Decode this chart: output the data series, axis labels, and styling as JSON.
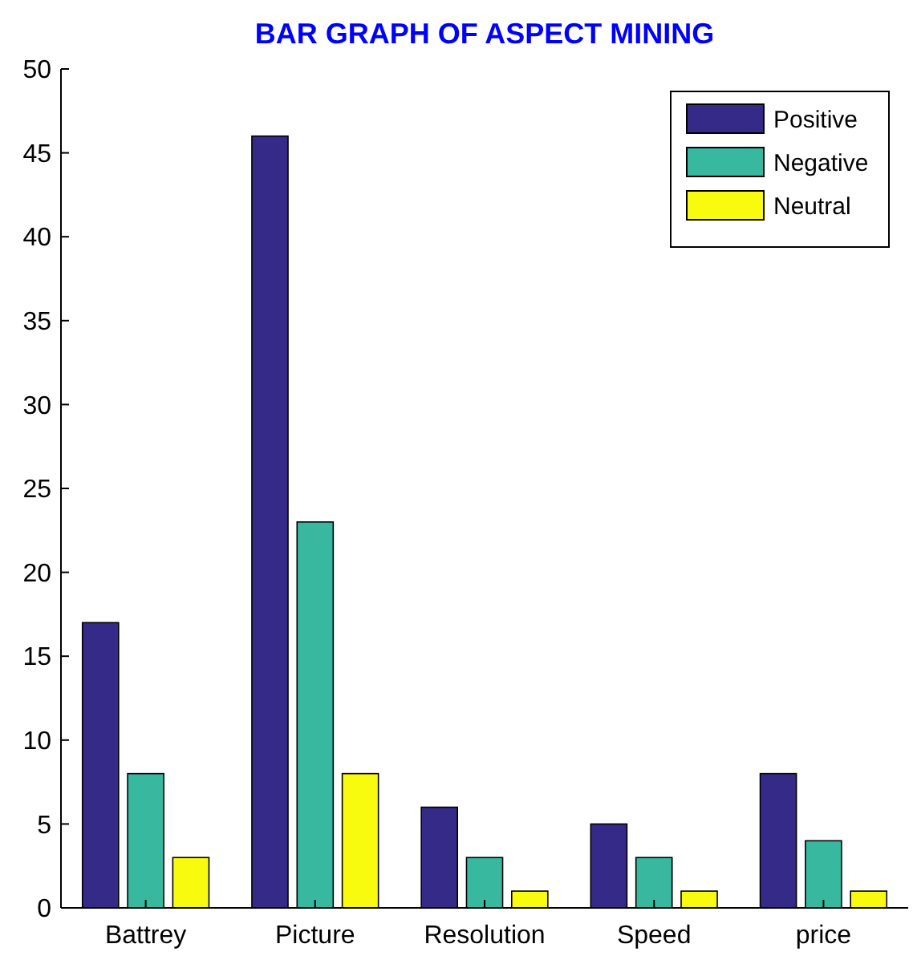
{
  "chart_data": {
    "type": "bar",
    "title": "BAR GRAPH OF ASPECT MINING",
    "categories": [
      "Battrey",
      "Picture",
      "Resolution",
      "Speed",
      "price"
    ],
    "series": [
      {
        "name": "Positive",
        "color": "#352a87",
        "values": [
          17,
          46,
          6,
          5,
          8
        ]
      },
      {
        "name": "Negative",
        "color": "#38b89e",
        "values": [
          8,
          23,
          3,
          3,
          4
        ]
      },
      {
        "name": "Neutral",
        "color": "#f9fb0e",
        "values": [
          3,
          8,
          1,
          1,
          1
        ]
      }
    ],
    "ylim": [
      0,
      50
    ],
    "yticks": [
      0,
      5,
      10,
      15,
      20,
      25,
      30,
      35,
      40,
      45,
      50
    ],
    "grid": false,
    "legend": "top right"
  }
}
